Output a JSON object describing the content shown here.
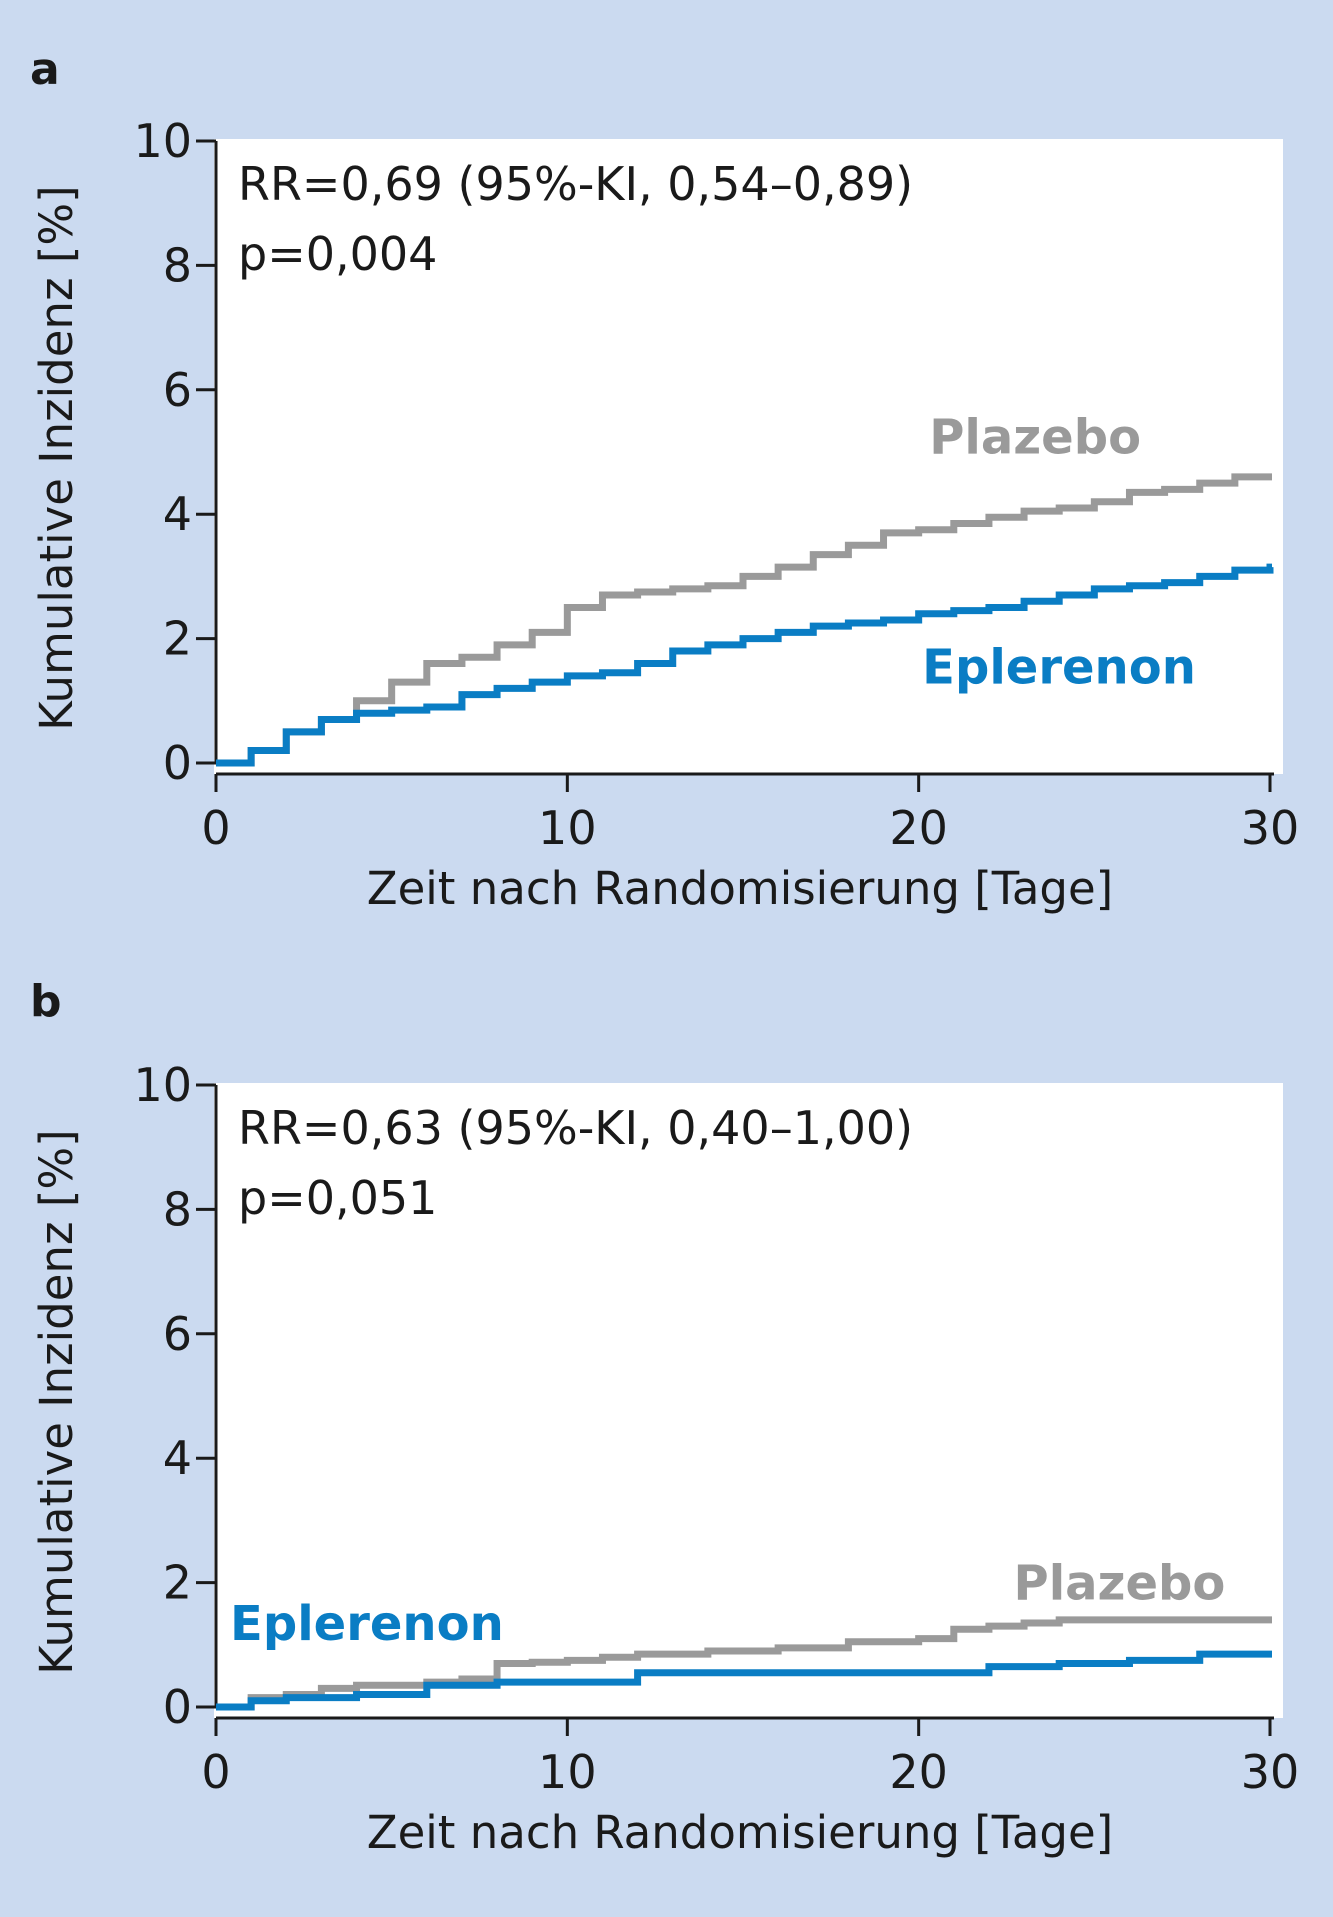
{
  "colors": {
    "background": "#cbdaf0",
    "plot_area": "#ffffff",
    "plazebo": "#9a9a9a",
    "eplerenon": "#0a7dc4",
    "axis": "#1a1a1a"
  },
  "chart_data": [
    {
      "type": "line",
      "panel_label": "a",
      "xlabel": "Zeit nach Randomisierung [Tage]",
      "ylabel": "Kumulative Inzidenz [%]",
      "xlim": [
        0,
        30
      ],
      "ylim": [
        0,
        10
      ],
      "xticks": [
        0,
        10,
        20,
        30
      ],
      "yticks": [
        0,
        2,
        4,
        6,
        8,
        10
      ],
      "grid": false,
      "step": true,
      "annotation_lines": [
        "RR=0,69 (95%-KI, 0,54–0,89)",
        "p=0,004"
      ],
      "series": [
        {
          "name": "Plazebo",
          "color": "#9a9a9a",
          "x": [
            0,
            1,
            2,
            3,
            4,
            5,
            6,
            7,
            8,
            9,
            10,
            11,
            12,
            13,
            14,
            15,
            16,
            17,
            18,
            19,
            20,
            21,
            22,
            23,
            24,
            25,
            26,
            27,
            28,
            29,
            30
          ],
          "y": [
            0,
            0.2,
            0.5,
            0.7,
            1.0,
            1.3,
            1.6,
            1.7,
            1.9,
            2.1,
            2.5,
            2.7,
            2.75,
            2.8,
            2.85,
            3.0,
            3.15,
            3.35,
            3.5,
            3.7,
            3.75,
            3.85,
            3.95,
            4.05,
            4.1,
            4.2,
            4.35,
            4.4,
            4.5,
            4.6,
            4.6
          ]
        },
        {
          "name": "Eplerenon",
          "color": "#0a7dc4",
          "x": [
            0,
            1,
            2,
            3,
            4,
            5,
            6,
            7,
            8,
            9,
            10,
            11,
            12,
            13,
            14,
            15,
            16,
            17,
            18,
            19,
            20,
            21,
            22,
            23,
            24,
            25,
            26,
            27,
            28,
            29,
            30
          ],
          "y": [
            0,
            0.2,
            0.5,
            0.7,
            0.8,
            0.85,
            0.9,
            1.1,
            1.2,
            1.3,
            1.4,
            1.45,
            1.6,
            1.8,
            1.9,
            2.0,
            2.1,
            2.2,
            2.25,
            2.3,
            2.4,
            2.45,
            2.5,
            2.6,
            2.7,
            2.8,
            2.85,
            2.9,
            3.0,
            3.1,
            3.15
          ]
        }
      ],
      "labels": [
        {
          "text": "Plazebo",
          "series": 0,
          "x": 20.3,
          "y": 5.3
        },
        {
          "text": "Eplerenon",
          "series": 1,
          "x": 20.1,
          "y": 1.6
        }
      ]
    },
    {
      "type": "line",
      "panel_label": "b",
      "xlabel": "Zeit nach Randomisierung [Tage]",
      "ylabel": "Kumulative Inzidenz [%]",
      "xlim": [
        0,
        30
      ],
      "ylim": [
        0,
        10
      ],
      "xticks": [
        0,
        10,
        20,
        30
      ],
      "yticks": [
        0,
        2,
        4,
        6,
        8,
        10
      ],
      "grid": false,
      "step": true,
      "annotation_lines": [
        "RR=0,63 (95%-KI, 0,40–1,00)",
        "p=0,051"
      ],
      "series": [
        {
          "name": "Plazebo",
          "color": "#9a9a9a",
          "x": [
            0,
            1,
            2,
            3,
            4,
            6,
            7,
            8,
            9,
            10,
            11,
            12,
            14,
            16,
            18,
            20,
            21,
            22,
            23,
            24,
            25,
            26,
            28,
            30
          ],
          "y": [
            0,
            0.15,
            0.2,
            0.3,
            0.35,
            0.4,
            0.45,
            0.7,
            0.72,
            0.75,
            0.8,
            0.85,
            0.9,
            0.95,
            1.05,
            1.1,
            1.25,
            1.3,
            1.35,
            1.4,
            1.4,
            1.4,
            1.4,
            1.4
          ]
        },
        {
          "name": "Eplerenon",
          "color": "#0a7dc4",
          "x": [
            0,
            1,
            2,
            4,
            6,
            8,
            10,
            12,
            14,
            16,
            18,
            20,
            22,
            24,
            26,
            28,
            30
          ],
          "y": [
            0,
            0.1,
            0.15,
            0.2,
            0.35,
            0.4,
            0.4,
            0.55,
            0.55,
            0.55,
            0.55,
            0.55,
            0.65,
            0.7,
            0.75,
            0.85,
            0.85
          ]
        }
      ],
      "labels": [
        {
          "text": "Plazebo",
          "series": 0,
          "x": 22.7,
          "y": 2.05
        },
        {
          "text": "Eplerenon",
          "series": 1,
          "x": 0.4,
          "y": 1.4
        }
      ]
    }
  ]
}
